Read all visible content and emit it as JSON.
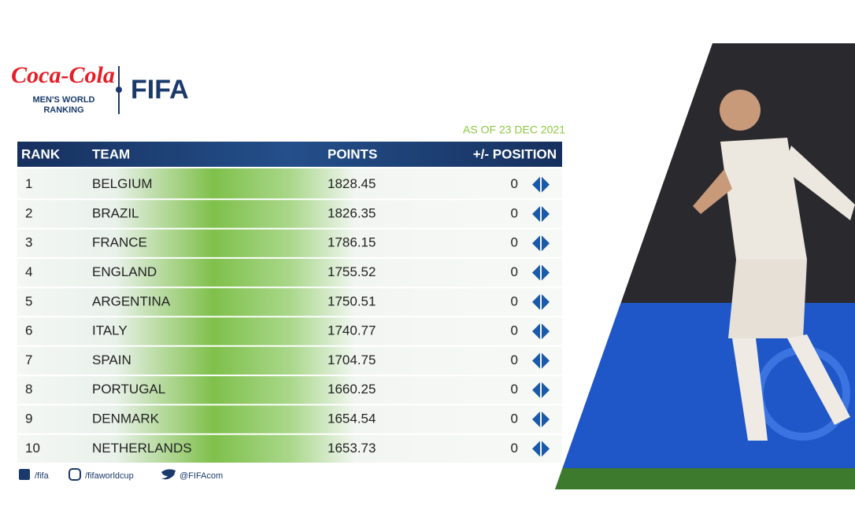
{
  "header": {
    "sponsor": "Coca-Cola",
    "subtitle_line1": "MEN'S WORLD",
    "subtitle_line2": "RANKING",
    "brand": "FIFA",
    "date": "AS OF 23 DEC 2021"
  },
  "table": {
    "columns": [
      "RANK",
      "TEAM",
      "POINTS",
      "+/- POSITION"
    ],
    "rows": [
      [
        1,
        "BELGIUM",
        1828.45,
        0
      ],
      [
        2,
        "BRAZIL",
        1826.35,
        0
      ],
      [
        3,
        "FRANCE",
        1786.15,
        0
      ],
      [
        4,
        "ENGLAND",
        1755.52,
        0
      ],
      [
        5,
        "ARGENTINA",
        1750.51,
        0
      ],
      [
        6,
        "ITALY",
        1740.77,
        0
      ],
      [
        7,
        "SPAIN",
        1704.75,
        0
      ],
      [
        8,
        "PORTUGAL",
        1660.25,
        0
      ],
      [
        9,
        "DENMARK",
        1654.54,
        0
      ],
      [
        10,
        "NETHERLANDS",
        1653.73,
        0
      ]
    ]
  },
  "footer": {
    "facebook": "/fifa",
    "instagram": "/fifaworldcup",
    "twitter": "@FIFAcom"
  }
}
